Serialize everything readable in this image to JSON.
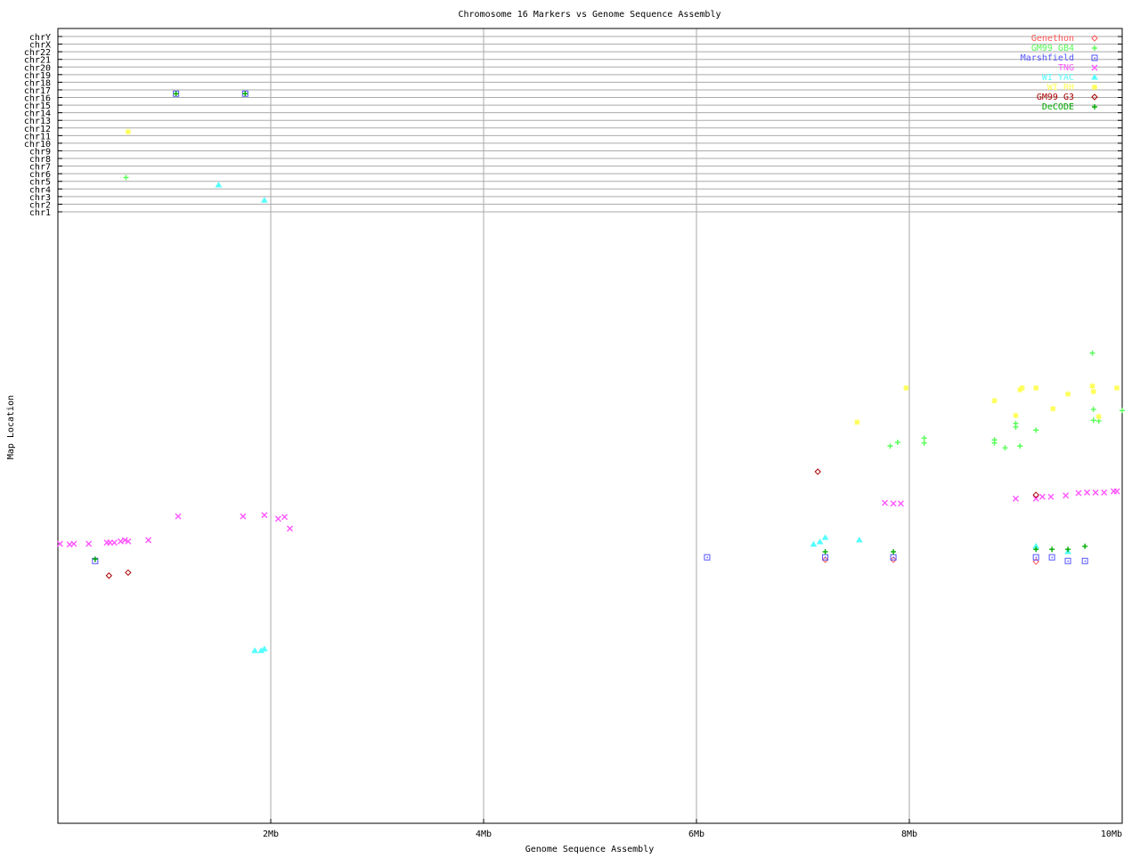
{
  "chart_data": {
    "type": "scatter",
    "title": "Chromosome 16 Markers vs Genome Sequence Assembly",
    "xlabel": "Genome Sequence Assembly",
    "ylabel": "Map Location",
    "xlim": [
      0,
      10
    ],
    "x_unit": "Mb",
    "x_ticks": [
      "2Mb",
      "4Mb",
      "6Mb",
      "8Mb",
      "10Mb"
    ],
    "x_tick_values": [
      2,
      4,
      6,
      8,
      10
    ],
    "ylim": [
      0,
      100
    ],
    "grid": true,
    "legend_position": "top-right",
    "chromosome_rows": [
      "chrY",
      "chrX",
      "chr22",
      "chr21",
      "chr20",
      "chr19",
      "chr18",
      "chr17",
      "chr16",
      "chr15",
      "chr14",
      "chr13",
      "chr12",
      "chr11",
      "chr10",
      "chr9",
      "chr8",
      "chr7",
      "chr6",
      "chr5",
      "chr4",
      "chr3",
      "chr2",
      "chr1"
    ],
    "series": [
      {
        "name": "Genethon",
        "color": "#ff5555",
        "marker": "diamond",
        "points": [
          [
            7.21,
            43.1
          ],
          [
            7.85,
            43.1
          ],
          [
            9.19,
            42.8
          ]
        ],
        "other_chr": []
      },
      {
        "name": "GM99 GB4",
        "color": "#55ff55",
        "marker": "plus",
        "points": [
          [
            7.82,
            61.7
          ],
          [
            7.89,
            62.3
          ],
          [
            8.14,
            63.0
          ],
          [
            8.14,
            62.2
          ],
          [
            8.8,
            62.7
          ],
          [
            8.8,
            62.2
          ],
          [
            8.9,
            61.4
          ],
          [
            9.04,
            61.7
          ],
          [
            9.0,
            65.4
          ],
          [
            9.0,
            64.8
          ],
          [
            9.19,
            64.3
          ],
          [
            9.72,
            76.9
          ],
          [
            9.73,
            67.7
          ],
          [
            9.73,
            65.9
          ],
          [
            9.78,
            65.8
          ],
          [
            10.0,
            67.5
          ]
        ],
        "other_chr": [
          {
            "chr": "chr6",
            "x": 0.64
          }
        ]
      },
      {
        "name": "Marshfield",
        "color": "#5555ff",
        "marker": "square",
        "points": [
          [
            0.35,
            42.9
          ],
          [
            6.1,
            43.5
          ],
          [
            7.21,
            43.5
          ],
          [
            7.85,
            43.5
          ],
          [
            9.19,
            43.5
          ],
          [
            9.34,
            43.5
          ],
          [
            9.49,
            42.9
          ],
          [
            9.65,
            42.9
          ]
        ],
        "other_chr": [
          {
            "chr": "chr17",
            "x": 1.11
          },
          {
            "chr": "chr17",
            "x": 1.76
          }
        ]
      },
      {
        "name": "TNG",
        "color": "#ff55ff",
        "marker": "cross",
        "points": [
          [
            0.02,
            45.7
          ],
          [
            0.11,
            45.6
          ],
          [
            0.15,
            45.7
          ],
          [
            0.29,
            45.7
          ],
          [
            0.46,
            45.9
          ],
          [
            0.49,
            45.9
          ],
          [
            0.53,
            45.9
          ],
          [
            0.59,
            46.1
          ],
          [
            0.63,
            46.3
          ],
          [
            0.66,
            46.1
          ],
          [
            0.85,
            46.3
          ],
          [
            1.13,
            50.2
          ],
          [
            1.74,
            50.2
          ],
          [
            1.94,
            50.4
          ],
          [
            2.07,
            49.8
          ],
          [
            2.13,
            50.1
          ],
          [
            2.18,
            48.2
          ],
          [
            7.77,
            52.4
          ],
          [
            7.85,
            52.3
          ],
          [
            7.92,
            52.3
          ],
          [
            9.0,
            53.1
          ],
          [
            9.19,
            53.1
          ],
          [
            9.25,
            53.4
          ],
          [
            9.33,
            53.4
          ],
          [
            9.47,
            53.6
          ],
          [
            9.59,
            54.0
          ],
          [
            9.67,
            54.1
          ],
          [
            9.75,
            54.1
          ],
          [
            9.83,
            54.1
          ],
          [
            9.92,
            54.3
          ],
          [
            9.95,
            54.3
          ]
        ],
        "other_chr": []
      },
      {
        "name": "WI YAC",
        "color": "#55ffff",
        "marker": "triangle",
        "points": [
          [
            1.85,
            28.2
          ],
          [
            1.91,
            28.2
          ],
          [
            1.94,
            28.5
          ],
          [
            7.1,
            45.6
          ],
          [
            7.16,
            46.0
          ],
          [
            7.21,
            46.7
          ],
          [
            7.53,
            46.3
          ],
          [
            9.19,
            45.3
          ],
          [
            9.49,
            44.4
          ]
        ],
        "other_chr": [
          {
            "chr": "chr5",
            "x": 1.51
          },
          {
            "chr": "chr3",
            "x": 1.94
          }
        ]
      },
      {
        "name": "WI RH",
        "color": "#ffff55",
        "marker": "star",
        "points": [
          [
            7.51,
            65.6
          ],
          [
            7.97,
            71.2
          ],
          [
            8.8,
            69.1
          ],
          [
            9.04,
            70.9
          ],
          [
            9.06,
            71.2
          ],
          [
            9.19,
            71.2
          ],
          [
            9.35,
            67.8
          ],
          [
            9.49,
            70.2
          ],
          [
            9.72,
            71.5
          ],
          [
            9.73,
            70.6
          ],
          [
            9.78,
            66.5
          ],
          [
            9.95,
            71.2
          ],
          [
            9.0,
            66.7
          ]
        ],
        "other_chr": [
          {
            "chr": "chr12",
            "x": 0.66
          }
        ]
      },
      {
        "name": "GM99 G3",
        "color": "#aa0000",
        "marker": "diamond",
        "points": [
          [
            0.48,
            40.5
          ],
          [
            0.66,
            41.0
          ],
          [
            7.14,
            57.5
          ],
          [
            9.19,
            53.7
          ]
        ],
        "other_chr": []
      },
      {
        "name": "DeCODE",
        "color": "#00aa00",
        "marker": "plus",
        "points": [
          [
            0.35,
            43.2
          ],
          [
            7.21,
            44.4
          ],
          [
            7.85,
            44.4
          ],
          [
            9.19,
            44.8
          ],
          [
            9.34,
            44.8
          ],
          [
            9.49,
            44.8
          ],
          [
            9.65,
            45.3
          ]
        ],
        "other_chr": [
          {
            "chr": "chr17",
            "x": 1.11
          },
          {
            "chr": "chr17",
            "x": 1.76
          }
        ]
      }
    ]
  }
}
